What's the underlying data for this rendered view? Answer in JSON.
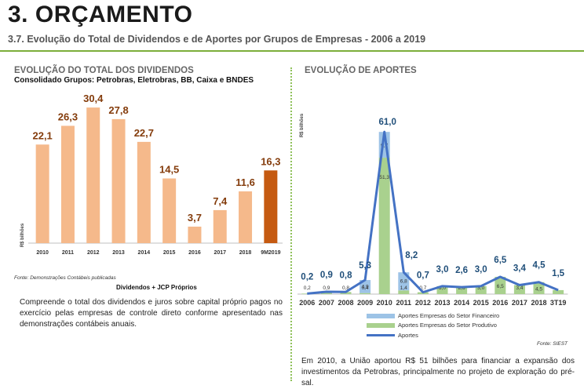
{
  "header": {
    "title": "3. ORÇAMENTO",
    "subtitle": "3.7. Evolução do Total de Dividendos e de Aportes por Grupos de Empresas - 2006 a 2019"
  },
  "left": {
    "title": "EVOLUÇÃO DO TOTAL DOS DIVIDENDOS",
    "subtitle": "Consolidado Grupos: Petrobras, Eletrobras, BB, Caixa e BNDES",
    "note": "Fonte: Demonstrações Contábeis publicadas",
    "caption": "Dividendos + JCP Próprios",
    "paragraph": "Compreende o total dos dividendos e juros sobre capital próprio pagos no exercício pelas empresas de controle direto conforme apresentado nas demonstrações contábeis anuais."
  },
  "right": {
    "title": "EVOLUÇÃO DE APORTES",
    "legend": [
      "Aportes Empresas do Setor Financeiro",
      "Aportes  Empresas do Setor Produtivo",
      "Aportes"
    ],
    "source": "Fonte: SIEST",
    "paragraph": "Em 2010, a União aportou R$ 51 bilhões para financiar a expansão dos investimentos da Petrobras, principalmente no projeto de exploração do pré-sal."
  },
  "chart_data": [
    {
      "type": "bar",
      "title": "EVOLUÇÃO DO TOTAL DOS DIVIDENDOS",
      "xlabel": "Dividendos + JCP Próprios",
      "ylabel": "R$ bilhões",
      "categories": [
        "2010",
        "2011",
        "2012",
        "2013",
        "2014",
        "2015",
        "2016",
        "2017",
        "2018",
        "9M2019"
      ],
      "values": [
        22.1,
        26.3,
        30.4,
        27.8,
        22.7,
        14.5,
        3.7,
        7.4,
        11.6,
        16.3
      ],
      "labels": [
        "22,1",
        "26,3",
        "30,4",
        "27,8",
        "22,7",
        "14,5",
        "3,7",
        "7,4",
        "11,6",
        "16,3"
      ],
      "colors": {
        "bar": "#f5b98b",
        "highlight": "#c55a11",
        "label": "#843c0c"
      },
      "ylim": [
        0,
        32
      ],
      "grid": false
    },
    {
      "type": "bar",
      "title": "EVOLUÇÃO DE APORTES",
      "ylabel": "R$ bilhões",
      "categories": [
        "2006",
        "2007",
        "2008",
        "2009",
        "2010",
        "2011",
        "2012",
        "2013",
        "2014",
        "2015",
        "2016",
        "2017",
        "2018",
        "3T19"
      ],
      "series": [
        {
          "name": "Aportes  Empresas do Setor Produtivo",
          "color": "#a9d18e",
          "values": [
            0.2,
            0.9,
            0.8,
            0.4,
            51.3,
            1.4,
            0.7,
            3.0,
            2.6,
            3.0,
            6.5,
            3.4,
            4.5,
            1.5
          ],
          "labels": [
            "0,2",
            "0,9",
            "0,8",
            "0,4",
            "51,3",
            "1,4",
            "0,7",
            "3,0",
            "2,6",
            "3,0",
            "6,5",
            "3,4",
            "4,5",
            ""
          ]
        },
        {
          "name": "Aportes Empresas do Setor Financeiro",
          "color": "#9dc3e6",
          "values": [
            0,
            0,
            0,
            4.9,
            9.7,
            6.8,
            0,
            0,
            0,
            0,
            0,
            0,
            0,
            0
          ],
          "labels": [
            "",
            "",
            "",
            "4,9",
            "9,7",
            "6,8",
            "",
            "",
            "",
            "",
            "",
            "",
            "",
            ""
          ]
        },
        {
          "name": "Aportes",
          "type": "line",
          "color": "#4472c4",
          "values": [
            0.2,
            0.9,
            0.8,
            5.3,
            61.0,
            8.2,
            0.7,
            3.0,
            2.6,
            3.0,
            6.5,
            3.4,
            4.5,
            1.5
          ],
          "labels": [
            "0,2",
            "0,9",
            "0,8",
            "5,3",
            "61,0",
            "8,2",
            "0,7",
            "3,0",
            "2,6",
            "3,0",
            "6,5",
            "3,4",
            "4,5",
            "1,5"
          ]
        }
      ],
      "ylim": [
        0,
        64
      ],
      "grid": false
    }
  ]
}
